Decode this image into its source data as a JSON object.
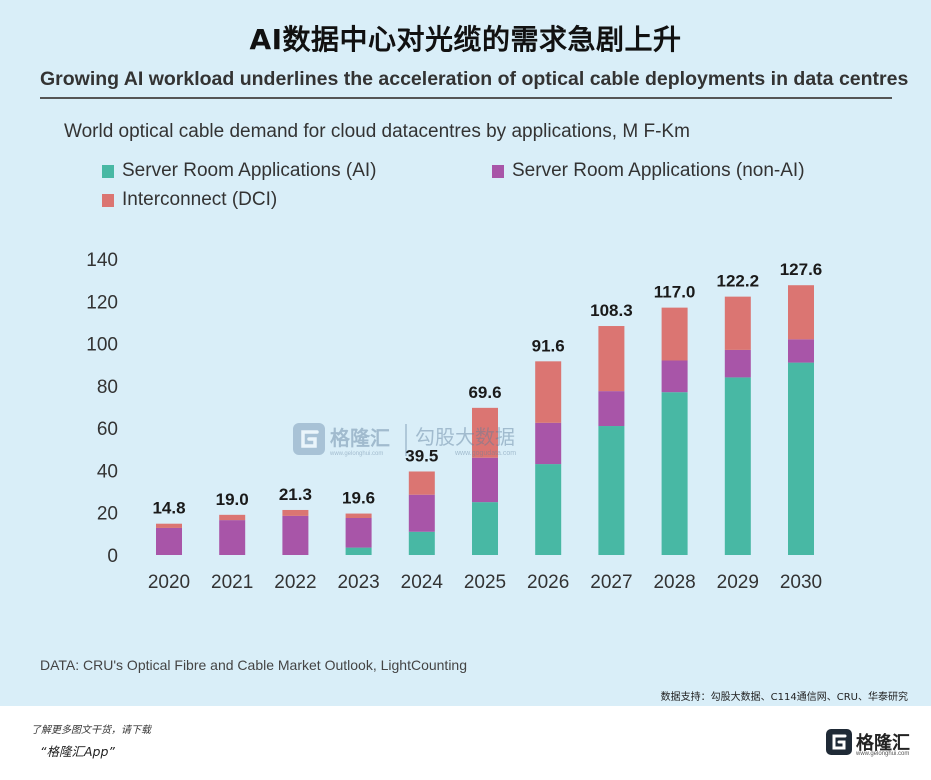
{
  "title": "AI数据中心对光缆的需求急剧上升",
  "subtitle": "Growing AI workload underlines the acceleration of optical cable deployments in data centres",
  "chart_data": {
    "type": "bar",
    "stacked": true,
    "title": "World optical cable demand for cloud datacentres by applications, M F-Km",
    "xlabel": "",
    "ylabel": "",
    "ylim": [
      0,
      140
    ],
    "yticks": [
      0,
      20,
      40,
      60,
      80,
      100,
      120,
      140
    ],
    "grid": false,
    "legend_position": "top-left",
    "categories": [
      "2020",
      "2021",
      "2022",
      "2023",
      "2024",
      "2025",
      "2026",
      "2027",
      "2028",
      "2029",
      "2030"
    ],
    "series": [
      {
        "name": "Server Room Applications (AI)",
        "color": "#48b8a4",
        "values": [
          0,
          0,
          0,
          3.5,
          11,
          25,
          43,
          61,
          77,
          84,
          91
        ]
      },
      {
        "name": "Server Room Applications (non-AI)",
        "color": "#a855a8",
        "values": [
          12.8,
          16.5,
          18.5,
          14,
          17.5,
          21,
          19.5,
          16.5,
          15,
          13,
          11
        ]
      },
      {
        "name": "Interconnect (DCI)",
        "color": "#db7572",
        "values": [
          2,
          2.5,
          2.8,
          2.1,
          11,
          23.6,
          29.1,
          30.8,
          25,
          25.2,
          25.6
        ]
      }
    ],
    "totals": [
      "14.8",
      "19.0",
      "21.3",
      "19.6",
      "39.5",
      "69.6",
      "91.6",
      "108.3",
      "117.0",
      "122.2",
      "127.6"
    ]
  },
  "watermark": {
    "brand": "格隆汇",
    "brand_url": "www.gelonghui.com",
    "partner": "勾股大数据",
    "partner_url": "www.gogudata.com"
  },
  "source": "DATA: CRU's Optical Fibre and Cable Market Outlook, LightCounting",
  "data_support": "数据支持：勾股大数据、C114通信网、CRU、华泰研究",
  "footer": {
    "promo": "了解更多图文干货，请下载",
    "app": "“格隆汇App”",
    "brand": "格隆汇",
    "brand_url": "www.gelonghui.com"
  }
}
